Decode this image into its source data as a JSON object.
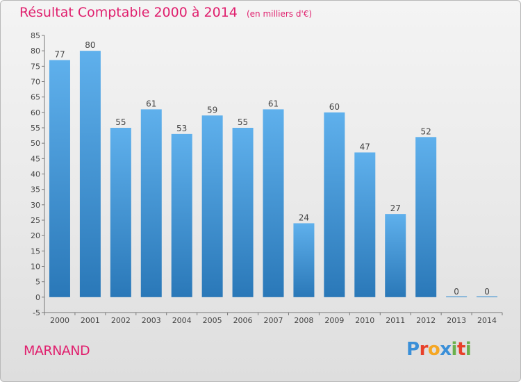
{
  "header": {
    "title": "Résultat Comptable 2000 à 2014",
    "subtitle": "(en milliers d'€)"
  },
  "footer": {
    "place": "MARNAND",
    "logo": "Proxiti"
  },
  "colors": {
    "title": "#e0206e",
    "bar_top": "#5fb0ec",
    "bar_bottom": "#2a78b8",
    "logo_letters": [
      "#3a8fd8",
      "#e8402a",
      "#f5a623",
      "#3a8fd8",
      "#6ab04c",
      "#e8402a",
      "#6ab04c"
    ]
  },
  "chart_data": {
    "type": "bar",
    "title": "Résultat Comptable 2000 à 2014",
    "subtitle": "(en milliers d'€)",
    "categories": [
      "2000",
      "2001",
      "2002",
      "2003",
      "2004",
      "2005",
      "2006",
      "2007",
      "2008",
      "2009",
      "2010",
      "2011",
      "2012",
      "2013",
      "2014"
    ],
    "values": [
      77,
      80,
      55,
      61,
      53,
      59,
      55,
      61,
      24,
      60,
      47,
      27,
      52,
      0,
      0
    ],
    "ylim": [
      -5,
      85
    ],
    "yticks": [
      -5,
      0,
      5,
      10,
      15,
      20,
      25,
      30,
      35,
      40,
      45,
      50,
      55,
      60,
      65,
      70,
      75,
      80,
      85
    ],
    "xlabel": "",
    "ylabel": "",
    "grid": false,
    "data_labels": true
  }
}
